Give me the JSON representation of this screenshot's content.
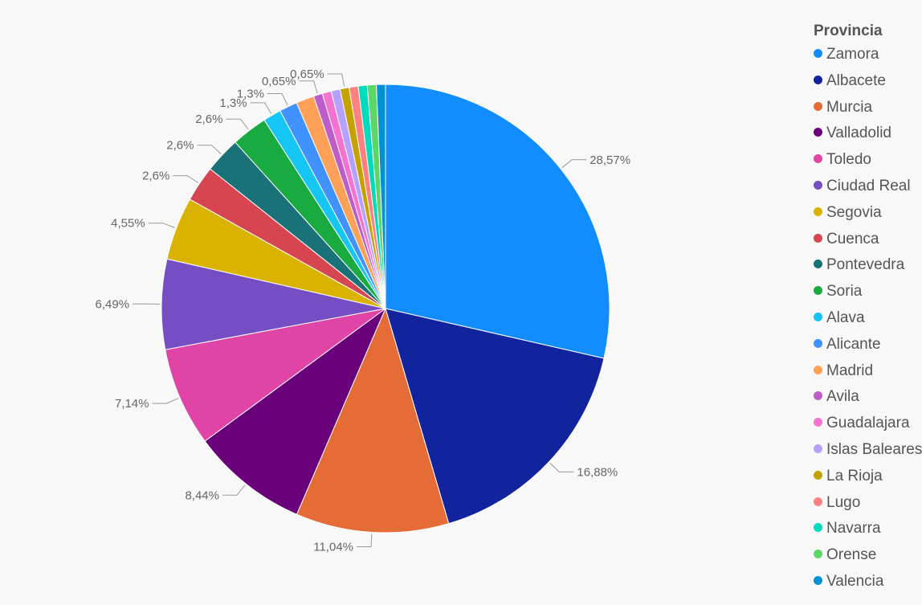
{
  "chart_data": {
    "type": "pie",
    "legend_title": "Provincia",
    "legend_position": "right",
    "slices": [
      {
        "name": "Zamora",
        "value": 28.57,
        "label": "28,57%",
        "color": "#118DFF"
      },
      {
        "name": "Albacete",
        "value": 16.88,
        "label": "16,88%",
        "color": "#12239E"
      },
      {
        "name": "Murcia",
        "value": 11.04,
        "label": "11,04%",
        "color": "#E66C37"
      },
      {
        "name": "Valladolid",
        "value": 8.44,
        "label": "8,44%",
        "color": "#6B007B"
      },
      {
        "name": "Toledo",
        "value": 7.14,
        "label": "7,14%",
        "color": "#E044A7"
      },
      {
        "name": "Ciudad Real",
        "value": 6.49,
        "label": "6,49%",
        "color": "#744EC2"
      },
      {
        "name": "Segovia",
        "value": 4.55,
        "label": "4,55%",
        "color": "#D9B300"
      },
      {
        "name": "Cuenca",
        "value": 2.6,
        "label": "2,6%",
        "color": "#D64550"
      },
      {
        "name": "Pontevedra",
        "value": 2.6,
        "label": "2,6%",
        "color": "#197278"
      },
      {
        "name": "Soria",
        "value": 2.6,
        "label": "2,6%",
        "color": "#1AAB40"
      },
      {
        "name": "Alava",
        "value": 1.3,
        "label": "1,3%",
        "color": "#15C6F4"
      },
      {
        "name": "Alicante",
        "value": 1.3,
        "label": "1,3%",
        "color": "#4092FF"
      },
      {
        "name": "Madrid",
        "value": 1.3,
        "label": "",
        "color": "#FFA058"
      },
      {
        "name": "Avila",
        "value": 0.65,
        "label": "0,65%",
        "color": "#BE5DC9"
      },
      {
        "name": "Guadalajara",
        "value": 0.65,
        "label": "",
        "color": "#F472D0"
      },
      {
        "name": "Islas Baleares",
        "value": 0.65,
        "label": "",
        "color": "#B5A1FF"
      },
      {
        "name": "La Rioja",
        "value": 0.65,
        "label": "0,65%",
        "color": "#C4A200"
      },
      {
        "name": "Lugo",
        "value": 0.65,
        "label": "",
        "color": "#FF8080"
      },
      {
        "name": "Navarra",
        "value": 0.65,
        "label": "",
        "color": "#00DBBC"
      },
      {
        "name": "Orense",
        "value": 0.65,
        "label": "",
        "color": "#5BD667"
      },
      {
        "name": "Valencia",
        "value": 0.65,
        "label": "",
        "color": "#0091D5"
      }
    ]
  }
}
